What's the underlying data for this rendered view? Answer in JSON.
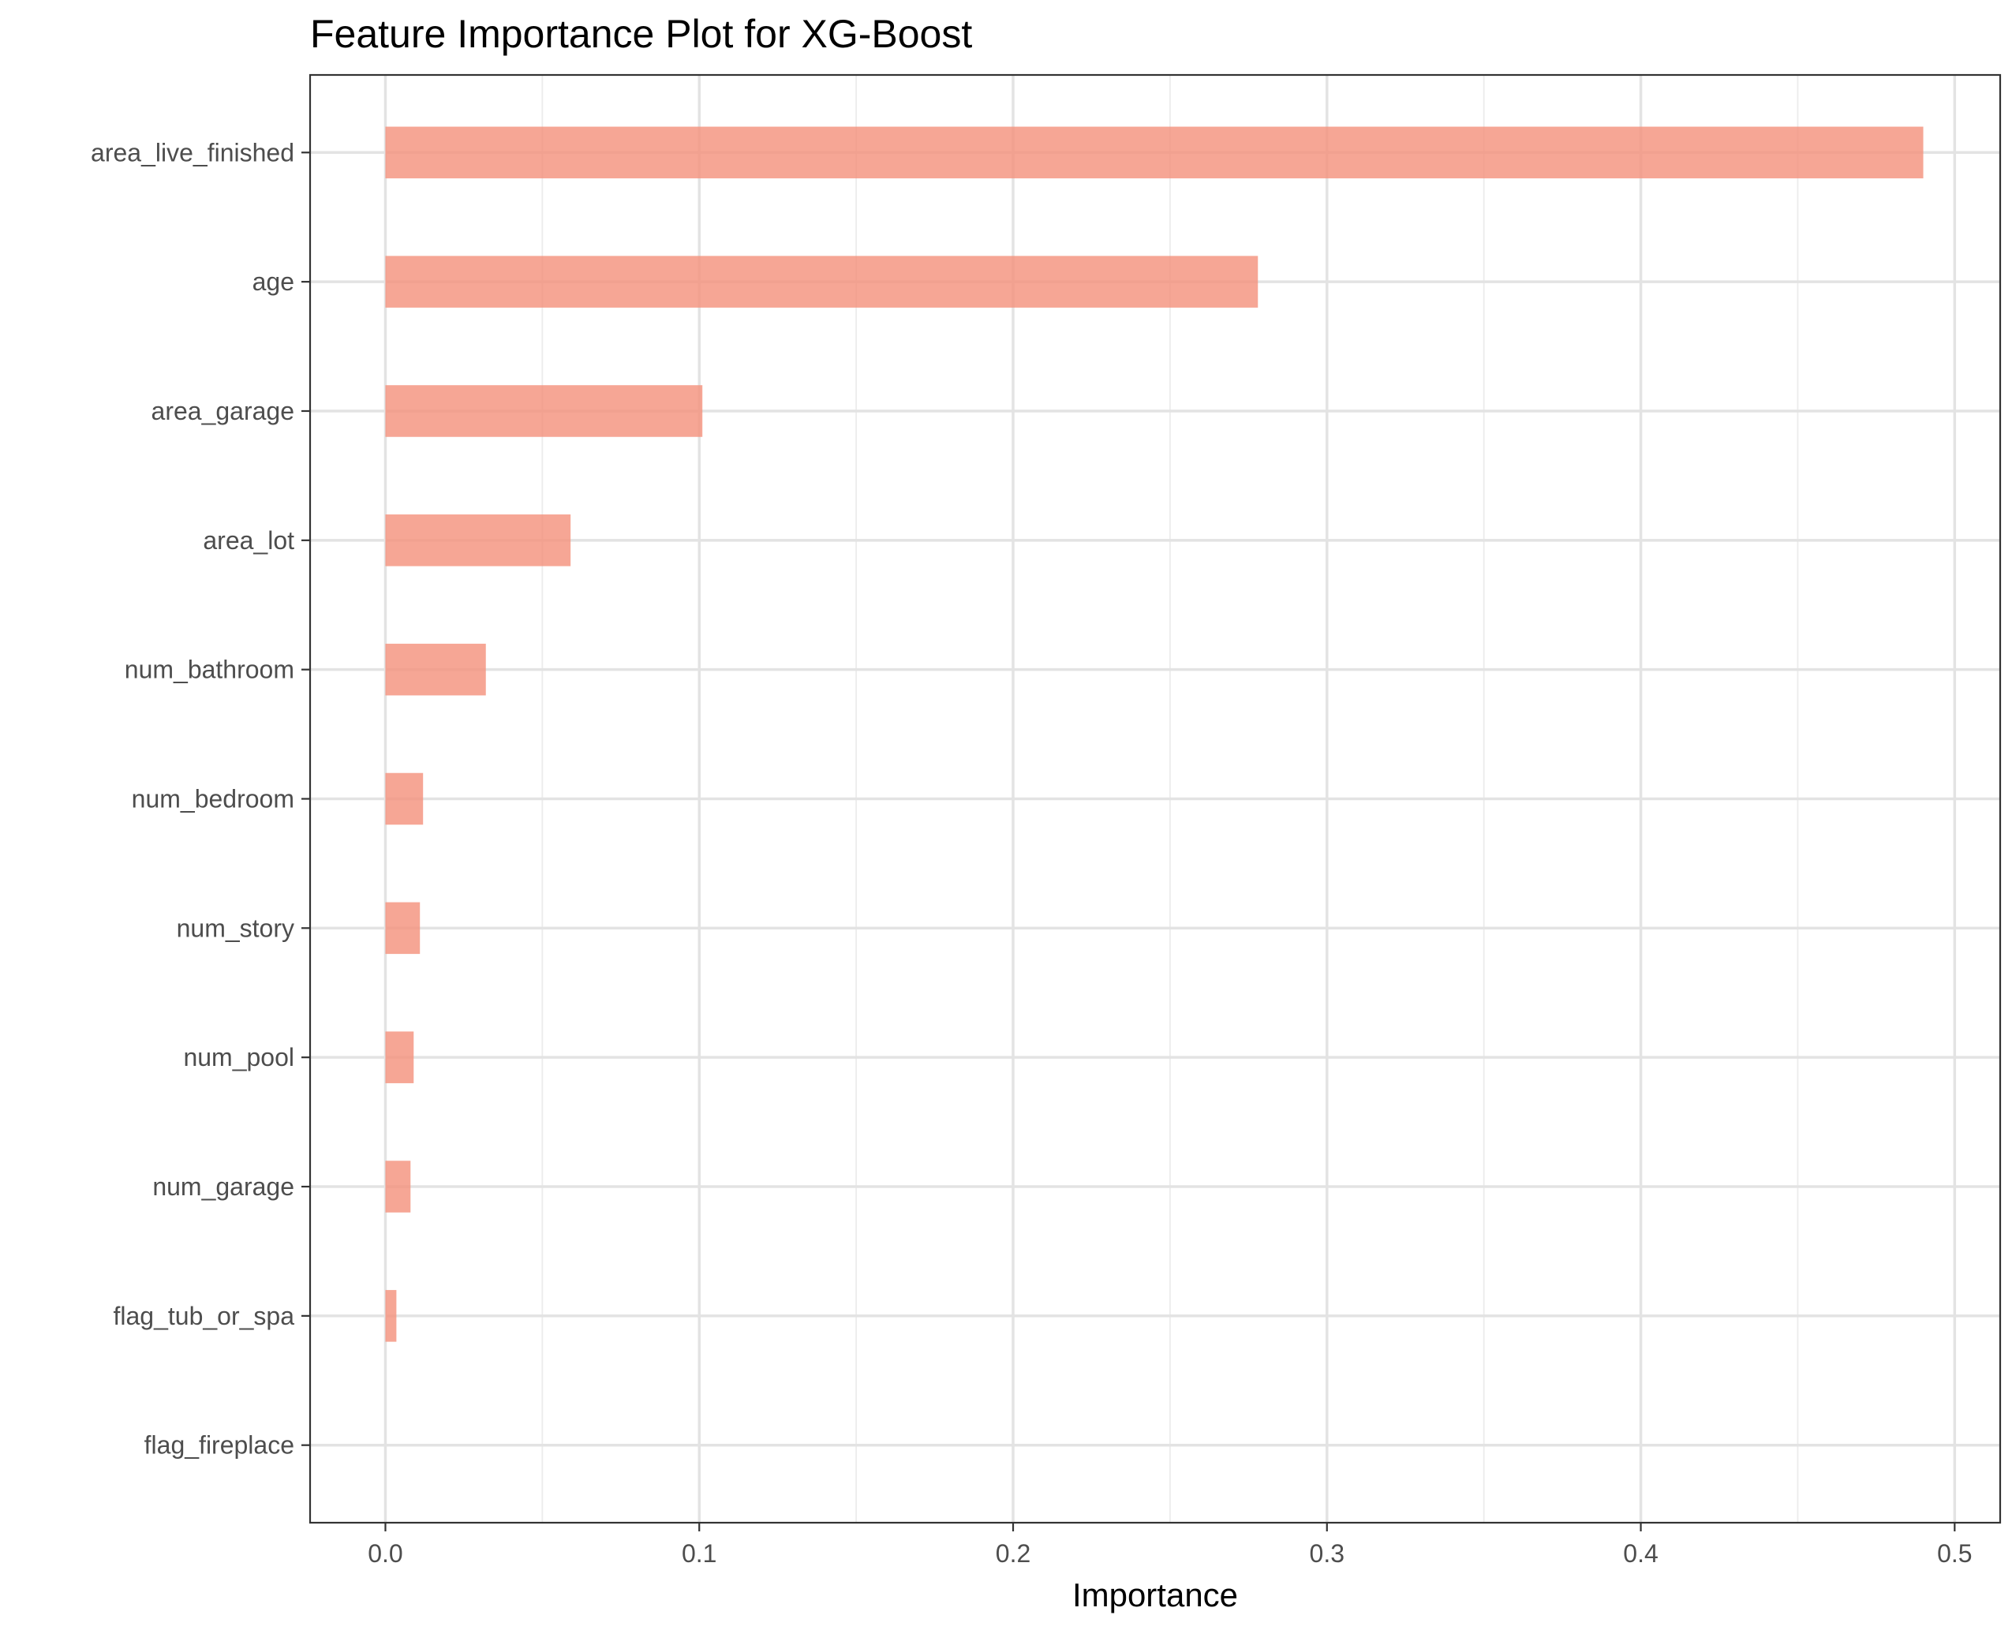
{
  "chart_data": {
    "type": "bar",
    "orientation": "horizontal",
    "title": "Feature Importance Plot for XG-Boost",
    "xlabel": "Importance",
    "ylabel": "",
    "categories": [
      "area_live_finished",
      "age",
      "area_garage",
      "area_lot",
      "num_bathroom",
      "num_bedroom",
      "num_story",
      "num_pool",
      "num_garage",
      "flag_tub_or_spa",
      "flag_fireplace"
    ],
    "values": [
      0.49,
      0.278,
      0.101,
      0.059,
      0.032,
      0.012,
      0.011,
      0.009,
      0.008,
      0.0035,
      0.0
    ],
    "xlim": [
      -0.024,
      0.5145
    ],
    "x_ticks": [
      0.0,
      0.1,
      0.2,
      0.3,
      0.4,
      0.5
    ],
    "x_tick_labels": [
      "0.0",
      "0.1",
      "0.2",
      "0.3",
      "0.4",
      "0.5"
    ],
    "grid": true,
    "legend": "none",
    "bar_color": "#f4907a",
    "bar_opacity": 0.8
  }
}
